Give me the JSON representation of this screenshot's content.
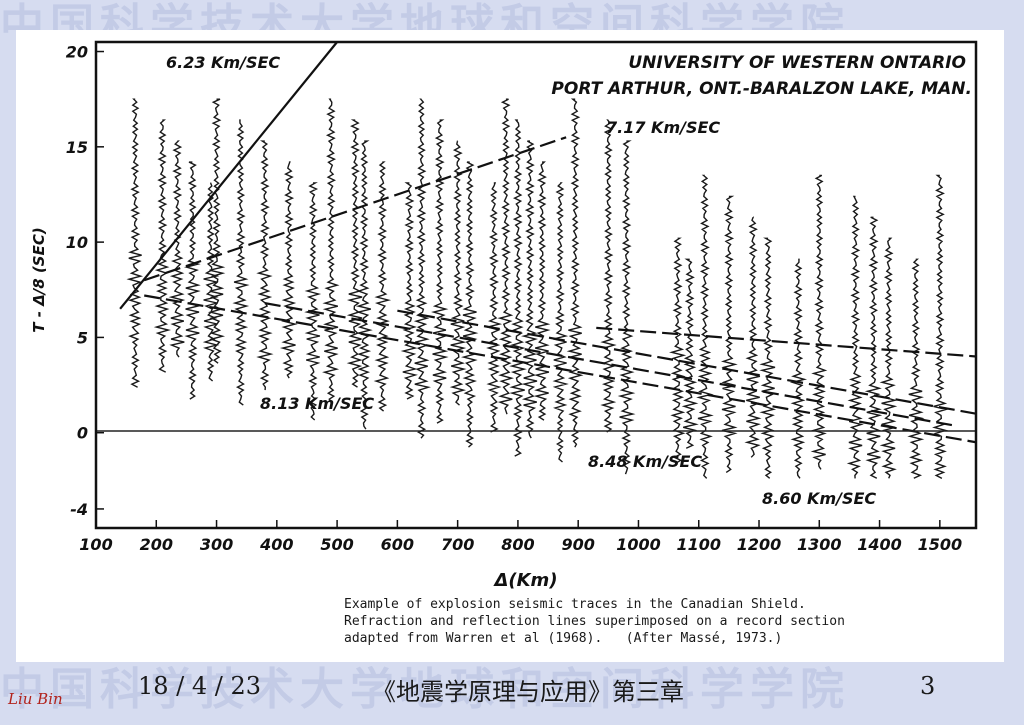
{
  "watermark": {
    "text": "中国科学技术大学地球和空间科学学院"
  },
  "chart_data": {
    "type": "scatter",
    "title_lines": [
      "UNIVERSITY OF WESTERN ONTARIO",
      "PORT ARTHUR, ONT.-BARALZON LAKE, MAN."
    ],
    "xlabel": "Δ(Km)",
    "ylabel": "T - Δ/8    (SEC)",
    "xlim": [
      100,
      1560
    ],
    "ylim": [
      -5,
      20.5
    ],
    "xticks": [
      100,
      200,
      300,
      400,
      500,
      600,
      700,
      800,
      900,
      1000,
      1100,
      1200,
      1300,
      1400,
      1500
    ],
    "yticks": [
      -4,
      0,
      5,
      10,
      15,
      20
    ],
    "trace_distances": [
      165,
      210,
      235,
      260,
      290,
      300,
      340,
      380,
      420,
      460,
      490,
      530,
      545,
      575,
      620,
      640,
      670,
      700,
      720,
      760,
      780,
      800,
      820,
      840,
      870,
      895,
      950,
      980,
      1065,
      1085,
      1110,
      1150,
      1190,
      1215,
      1265,
      1300,
      1360,
      1390,
      1415,
      1460,
      1500
    ],
    "velocity_lines": [
      {
        "label": "6.23 Km/SEC",
        "points": [
          [
            140,
            6.5
          ],
          [
            500,
            20.5
          ]
        ]
      },
      {
        "label": "7.17 Km/SEC",
        "points": [
          [
            180,
            8.0
          ],
          [
            880,
            15.5
          ]
        ]
      },
      {
        "label": "8.13 Km/SEC",
        "points": [
          [
            180,
            7.2
          ],
          [
            1560,
            -0.5
          ]
        ]
      },
      {
        "label": "8.48 Km/SEC",
        "points": [
          [
            380,
            6.8
          ],
          [
            1520,
            0.4
          ]
        ]
      },
      {
        "label": "8.60 Km/SEC",
        "points": [
          [
            600,
            6.4
          ],
          [
            1560,
            1.0
          ]
        ]
      },
      {
        "label": "",
        "points": [
          [
            930,
            5.5
          ],
          [
            1560,
            4.0
          ]
        ]
      }
    ]
  },
  "caption_lines": [
    "Example of explosion seismic traces in the Canadian Shield.",
    "Refraction and reflection lines superimposed on a record section",
    "adapted from Warren et al (1968).   (After Massé, 1973.)"
  ],
  "footer": {
    "date": "18 / 4 / 23",
    "title": "《地震学原理与应用》第三章",
    "page": "3"
  },
  "signature": "Liu Bin"
}
